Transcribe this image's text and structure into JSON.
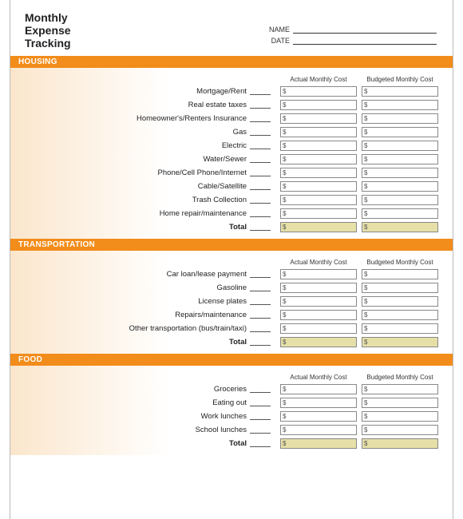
{
  "title_lines": [
    "Monthly",
    "Expense",
    "Tracking"
  ],
  "name_label": "NAME",
  "date_label": "DATE",
  "col_actual": "Actual Monthly Cost",
  "col_budgeted": "Budgeted Monthly Cost",
  "currency": "$",
  "total_label": "Total",
  "colors": {
    "bar": "#f28c1a",
    "gradient_start": "#fbe6cc",
    "total_cell": "#e6e0a8",
    "border": "#888"
  },
  "sections": [
    {
      "title": "HOUSING",
      "items": [
        "Mortgage/Rent",
        "Real estate taxes",
        "Homeowner's/Renters Insurance",
        "Gas",
        "Electric",
        "Water/Sewer",
        "Phone/Cell Phone/Internet",
        "Cable/Satellite",
        "Trash Collection",
        "Home repair/maintenance"
      ]
    },
    {
      "title": "TRANSPORTATION",
      "items": [
        "Car loan/lease payment",
        "Gasoline",
        "License plates",
        "Repairs/maintenance",
        "Other transportation (bus/train/taxi)"
      ]
    },
    {
      "title": "FOOD",
      "items": [
        "Groceries",
        "Eating out",
        "Work lunches",
        "School lunches"
      ]
    }
  ]
}
